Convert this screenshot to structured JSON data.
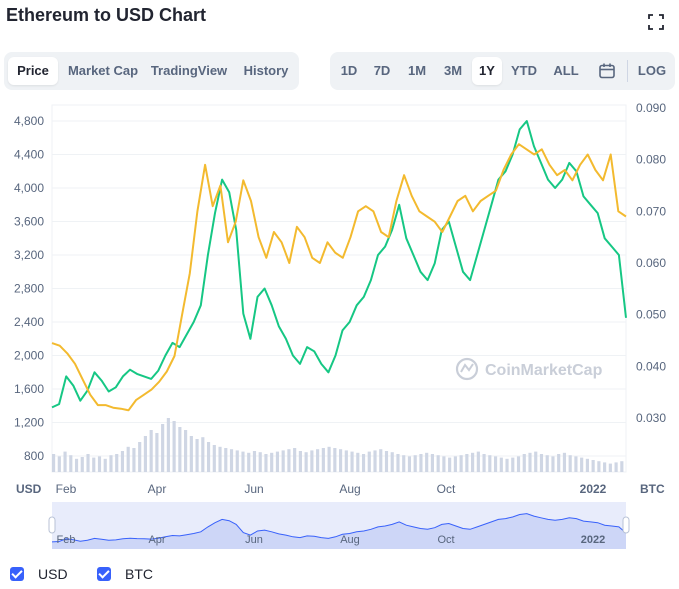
{
  "header": {
    "title": "Ethereum to USD Chart"
  },
  "tabs_left": [
    {
      "label": "Price",
      "active": true
    },
    {
      "label": "Market Cap",
      "active": false
    },
    {
      "label": "TradingView",
      "active": false
    },
    {
      "label": "History",
      "active": false
    }
  ],
  "tabs_right": [
    {
      "label": "1D",
      "active": false
    },
    {
      "label": "7D",
      "active": false
    },
    {
      "label": "1M",
      "active": false
    },
    {
      "label": "3M",
      "active": false
    },
    {
      "label": "1Y",
      "active": true
    },
    {
      "label": "YTD",
      "active": false
    },
    {
      "label": "ALL",
      "active": false
    }
  ],
  "log_label": "LOG",
  "icons": {
    "expand": "expand-icon",
    "calendar": "calendar-icon"
  },
  "colors": {
    "usd": "#16c784",
    "btc": "#f3ba2f",
    "accent": "#3861fb",
    "volume": "#cfd6e4"
  },
  "watermark": "CoinMarketCap",
  "legend": [
    {
      "label": "USD"
    },
    {
      "label": "BTC"
    }
  ],
  "chart_data": {
    "type": "line",
    "left_axis_label": "USD",
    "right_axis_label": "BTC",
    "yticks_left": [
      "800",
      "1,200",
      "1,600",
      "2,000",
      "2,400",
      "2,800",
      "3,200",
      "3,600",
      "4,000",
      "4,400",
      "4,800"
    ],
    "yticks_right": [
      "0.030",
      "0.040",
      "0.050",
      "0.060",
      "0.070",
      "0.080",
      "0.090"
    ],
    "xticks": [
      "Feb",
      "Apr",
      "Jun",
      "Aug",
      "Oct",
      "2022"
    ],
    "ylim_left": [
      800,
      4800
    ],
    "ylim_right": [
      0.03,
      0.09
    ],
    "grid": true,
    "series": [
      {
        "name": "USD",
        "axis": "left",
        "values": [
          1380,
          1420,
          1750,
          1640,
          1460,
          1580,
          1800,
          1700,
          1570,
          1620,
          1750,
          1830,
          1780,
          1750,
          1720,
          1820,
          2000,
          2150,
          2100,
          2250,
          2400,
          2600,
          3200,
          3700,
          4100,
          3950,
          3500,
          2500,
          2200,
          2700,
          2800,
          2600,
          2350,
          2200,
          2000,
          1900,
          2100,
          2050,
          1900,
          1800,
          2000,
          2300,
          2400,
          2600,
          2700,
          2900,
          3200,
          3300,
          3500,
          3800,
          3400,
          3200,
          3000,
          2900,
          3100,
          3500,
          3600,
          3300,
          3000,
          2900,
          3200,
          3500,
          3800,
          4100,
          4200,
          4400,
          4700,
          4800,
          4500,
          4300,
          4100,
          4000,
          4100,
          4300,
          4200,
          3900,
          3800,
          3700,
          3400,
          3300,
          3200,
          2450
        ]
      },
      {
        "name": "BTC",
        "axis": "right",
        "values": [
          0.0445,
          0.044,
          0.0425,
          0.0405,
          0.0375,
          0.0345,
          0.0325,
          0.0325,
          0.032,
          0.0318,
          0.0315,
          0.0335,
          0.0345,
          0.0355,
          0.037,
          0.039,
          0.042,
          0.05,
          0.058,
          0.07,
          0.079,
          0.071,
          0.075,
          0.064,
          0.068,
          0.076,
          0.072,
          0.065,
          0.061,
          0.066,
          0.064,
          0.06,
          0.067,
          0.065,
          0.061,
          0.06,
          0.064,
          0.062,
          0.061,
          0.065,
          0.07,
          0.071,
          0.07,
          0.066,
          0.065,
          0.072,
          0.077,
          0.073,
          0.07,
          0.069,
          0.068,
          0.066,
          0.069,
          0.072,
          0.073,
          0.07,
          0.072,
          0.073,
          0.074,
          0.078,
          0.081,
          0.083,
          0.082,
          0.081,
          0.082,
          0.079,
          0.077,
          0.078,
          0.076,
          0.079,
          0.081,
          0.078,
          0.076,
          0.081,
          0.07,
          0.069
        ]
      }
    ],
    "volume": [
      30,
      26,
      34,
      28,
      22,
      25,
      30,
      24,
      26,
      22,
      28,
      30,
      35,
      42,
      40,
      50,
      60,
      70,
      65,
      80,
      90,
      85,
      75,
      70,
      60,
      55,
      58,
      50,
      45,
      42,
      40,
      38,
      36,
      34,
      32,
      35,
      33,
      30,
      32,
      34,
      36,
      38,
      40,
      35,
      33,
      36,
      38,
      40,
      42,
      40,
      38,
      36,
      34,
      32,
      30,
      34,
      36,
      38,
      35,
      33,
      30,
      28,
      26,
      28,
      30,
      32,
      30,
      28,
      26,
      24,
      26,
      28,
      30,
      32,
      34,
      30,
      28,
      26,
      24,
      22,
      24,
      26,
      30,
      32,
      34,
      30,
      28,
      26,
      30,
      32,
      28,
      26,
      24,
      22,
      20,
      18,
      16,
      14,
      16,
      18
    ]
  }
}
